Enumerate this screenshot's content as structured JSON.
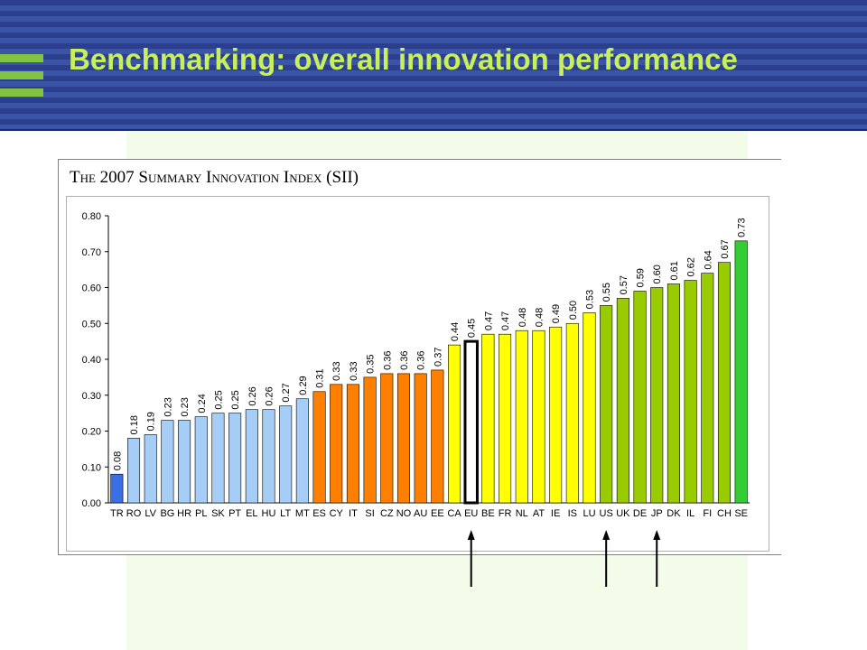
{
  "header": {
    "title": "Benchmarking: overall innovation performance"
  },
  "colors": {
    "header_blue": "#2b3f8e",
    "title_green": "#c8f05a",
    "bar_dark_blue": "#3b6fe6",
    "bar_light_blue": "#a6cdf5",
    "bar_orange": "#ff8000",
    "bar_yellow": "#ffff00",
    "bar_olive_green": "#99cc00",
    "bar_bright_green": "#33cc33"
  },
  "chart_data": {
    "type": "bar",
    "title": "The 2007 Summary Innovation Index (SII)",
    "xlabel": "",
    "ylabel": "",
    "ylim": [
      0,
      0.8
    ],
    "yticks": [
      "0.00",
      "0.10",
      "0.20",
      "0.30",
      "0.40",
      "0.50",
      "0.60",
      "0.70",
      "0.80"
    ],
    "grid": false,
    "legend": "none",
    "categories": [
      "TR",
      "RO",
      "LV",
      "BG",
      "HR",
      "PL",
      "SK",
      "PT",
      "EL",
      "HU",
      "LT",
      "MT",
      "ES",
      "CY",
      "IT",
      "SI",
      "CZ",
      "NO",
      "AU",
      "EE",
      "CA",
      "EU",
      "BE",
      "FR",
      "NL",
      "AT",
      "IE",
      "IS",
      "LU",
      "US",
      "UK",
      "DE",
      "JP",
      "DK",
      "IL",
      "FI",
      "CH",
      "SE"
    ],
    "values": [
      0.08,
      0.18,
      0.19,
      0.23,
      0.23,
      0.24,
      0.25,
      0.25,
      0.26,
      0.26,
      0.27,
      0.29,
      0.31,
      0.33,
      0.33,
      0.35,
      0.36,
      0.36,
      0.36,
      0.37,
      0.44,
      0.45,
      0.47,
      0.47,
      0.48,
      0.48,
      0.49,
      0.5,
      0.53,
      0.55,
      0.57,
      0.59,
      0.6,
      0.61,
      0.62,
      0.64,
      0.67,
      0.73
    ],
    "data_labels": [
      "0.08",
      "0.18",
      "0.19",
      "0.23",
      "0.23",
      "0.24",
      "0.25",
      "0.25",
      "0.26",
      "0.26",
      "0.27",
      "0.29",
      "0.31",
      "0.33",
      "0.33",
      "0.35",
      "0.36",
      "0.36",
      "0.36",
      "0.37",
      "0.44",
      "0.45",
      "0.47",
      "0.47",
      "0.48",
      "0.48",
      "0.49",
      "0.50",
      "0.53",
      "0.55",
      "0.57",
      "0.59",
      "0.60",
      "0.61",
      "0.62",
      "0.64",
      "0.67",
      "0.73"
    ],
    "bar_colors": [
      "#3b6fe6",
      "#a6cdf5",
      "#a6cdf5",
      "#a6cdf5",
      "#a6cdf5",
      "#a6cdf5",
      "#a6cdf5",
      "#a6cdf5",
      "#a6cdf5",
      "#a6cdf5",
      "#a6cdf5",
      "#a6cdf5",
      "#ff8000",
      "#ff8000",
      "#ff8000",
      "#ff8000",
      "#ff8000",
      "#ff8000",
      "#ff8000",
      "#ff8000",
      "#ffff00",
      "#ffffff",
      "#ffff00",
      "#ffff00",
      "#ffff00",
      "#ffff00",
      "#ffff00",
      "#ffff00",
      "#ffff00",
      "#99cc00",
      "#99cc00",
      "#99cc00",
      "#99cc00",
      "#99cc00",
      "#99cc00",
      "#99cc00",
      "#99cc00",
      "#33cc33"
    ],
    "highlighted_categories": [
      "EU",
      "US",
      "JP"
    ]
  }
}
